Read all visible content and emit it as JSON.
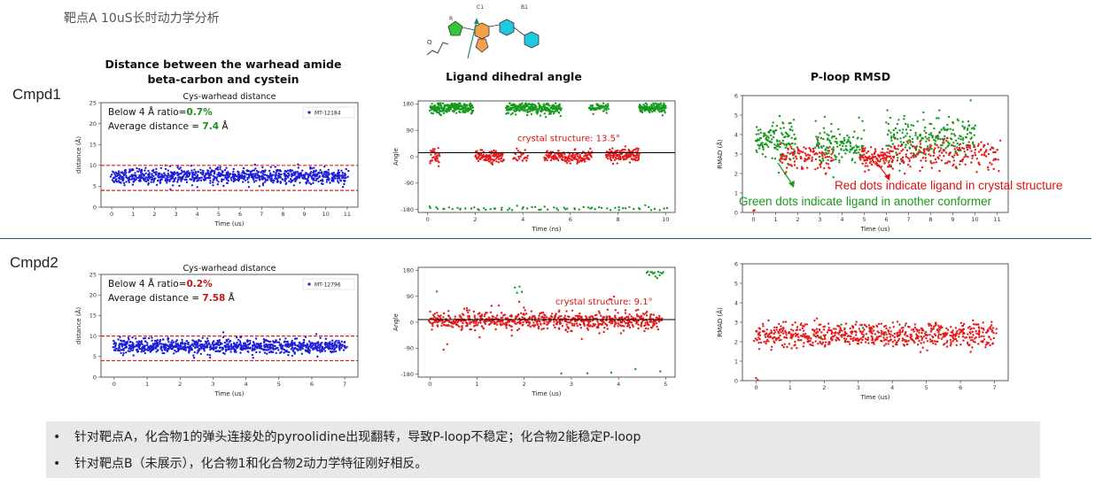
{
  "slide_title": "靶点A 10uS长时动力学分析",
  "rows": {
    "cmpd1": "Cmpd1",
    "cmpd2": "Cmpd2"
  },
  "column_headers": {
    "distance": "Distance between the warhead amide beta-carbon and cystein",
    "dihedral": "Ligand dihedral angle",
    "rmsd": "P-loop RMSD"
  },
  "structure_labels": {
    "r": "R",
    "c1": "C1",
    "b1": "B1"
  },
  "colors": {
    "blue": "#1f1fd6",
    "red": "#e51b1b",
    "green": "#179a1f",
    "accent_green": "#1a8c1a",
    "accent_red": "#c01818"
  },
  "annotations": {
    "rmsd_red": "Red dots indicate ligand in crystal structure",
    "rmsd_green": "Green dots indicate ligand in another conformer"
  },
  "bullets": [
    "针对靶点A，化合物1的弹头连接处的pyroolidine出现翻转，导致P-loop不稳定；化合物2能稳定P-loop",
    "针对靶点B（未展示），化合物1和化合物2动力学特征刚好相反。"
  ],
  "chart_data": [
    {
      "id": "c1_distance",
      "type": "scatter",
      "title": "Cys-warhead distance",
      "xlabel": "Time (us)",
      "ylabel": "distance (Å)",
      "xlim": [
        -0.5,
        11.5
      ],
      "ylim": [
        0,
        25
      ],
      "xticks": [
        0,
        1,
        2,
        3,
        4,
        5,
        6,
        7,
        8,
        9,
        10,
        11
      ],
      "yticks": [
        0,
        5,
        10,
        15,
        20,
        25
      ],
      "legend": "MT-12184",
      "hlines": [
        4,
        10
      ],
      "ratio_label": "Below 4 Å ratio=",
      "ratio_value": "0.7%",
      "avg_label": "Average distance = ",
      "avg_value": "7.4",
      "avg_unit": " Å",
      "sim": {
        "x0": 0,
        "x1": 11,
        "n": 900,
        "mean": 7.4,
        "sd": 0.9,
        "color": "blue"
      }
    },
    {
      "id": "c1_dihedral",
      "type": "scatter",
      "title": "",
      "xlabel": "Time (ns)",
      "ylabel": "Angle",
      "xlim": [
        -0.4,
        10.4
      ],
      "ylim": [
        -190,
        190
      ],
      "xticks": [
        0,
        2,
        4,
        6,
        8,
        10
      ],
      "yticks": [
        180,
        90,
        0,
        -90,
        -180
      ],
      "hlines": [
        13.5
      ],
      "crystal_label": "crystal structure: 13.5°",
      "sim": {
        "segments": [
          {
            "x0": 0.1,
            "x1": 1.9,
            "mean": 165,
            "sd": 9,
            "n": 230,
            "color": "green"
          },
          {
            "x0": 0.1,
            "x1": 0.5,
            "mean": 0,
            "sd": 18,
            "n": 30,
            "color": "red"
          },
          {
            "x0": 2.0,
            "x1": 3.2,
            "mean": 0,
            "sd": 10,
            "n": 120,
            "color": "red"
          },
          {
            "x0": 3.3,
            "x1": 5.6,
            "mean": 165,
            "sd": 9,
            "n": 230,
            "color": "green"
          },
          {
            "x0": 3.6,
            "x1": 4.2,
            "mean": 0,
            "sd": 12,
            "n": 25,
            "color": "red"
          },
          {
            "x0": 4.9,
            "x1": 6.9,
            "mean": 0,
            "sd": 10,
            "n": 150,
            "color": "red"
          },
          {
            "x0": 6.8,
            "x1": 7.6,
            "mean": 165,
            "sd": 8,
            "n": 60,
            "color": "green"
          },
          {
            "x0": 7.5,
            "x1": 8.9,
            "mean": 5,
            "sd": 12,
            "n": 150,
            "color": "red"
          },
          {
            "x0": 8.9,
            "x1": 10.0,
            "mean": 165,
            "sd": 8,
            "n": 140,
            "color": "green"
          },
          {
            "x0": 0.0,
            "x1": 10.0,
            "mean": -178,
            "sd": 4,
            "n": 70,
            "color": "green"
          }
        ]
      }
    },
    {
      "id": "c1_rmsd",
      "type": "scatter",
      "title": "",
      "xlabel": "Time (us)",
      "ylabel": "RMAD (Å)",
      "xlim": [
        -0.5,
        11.5
      ],
      "ylim": [
        0,
        6
      ],
      "xticks": [
        0,
        1,
        2,
        3,
        4,
        5,
        6,
        7,
        8,
        9,
        10,
        11
      ],
      "yticks": [
        0,
        1,
        2,
        3,
        4,
        5,
        6
      ],
      "sim": {
        "segments": [
          {
            "x0": 0.0,
            "x1": 0.05,
            "mean": 0.2,
            "sd": 0.1,
            "n": 2,
            "color": "red"
          },
          {
            "x0": 0.1,
            "x1": 1.9,
            "mean": 3.7,
            "sd": 0.5,
            "n": 130,
            "color": "green"
          },
          {
            "x0": 1.2,
            "x1": 3.6,
            "mean": 2.9,
            "sd": 0.35,
            "n": 120,
            "color": "red"
          },
          {
            "x0": 2.8,
            "x1": 5.0,
            "mean": 3.5,
            "sd": 0.5,
            "n": 130,
            "color": "green"
          },
          {
            "x0": 4.8,
            "x1": 6.3,
            "mean": 2.8,
            "sd": 0.3,
            "n": 120,
            "color": "red"
          },
          {
            "x0": 6.0,
            "x1": 10.0,
            "mean": 3.8,
            "sd": 0.55,
            "n": 220,
            "color": "green"
          },
          {
            "x0": 6.3,
            "x1": 11.1,
            "mean": 3.0,
            "sd": 0.4,
            "n": 200,
            "color": "red"
          }
        ]
      }
    },
    {
      "id": "c2_distance",
      "type": "scatter",
      "title": "Cys-warhead distance",
      "xlabel": "Time (us)",
      "ylabel": "distance (Å)",
      "xlim": [
        -0.4,
        7.4
      ],
      "ylim": [
        0,
        25
      ],
      "xticks": [
        0,
        1,
        2,
        3,
        4,
        5,
        6,
        7
      ],
      "yticks": [
        0,
        5,
        10,
        15,
        20,
        25
      ],
      "legend": "MT-12796",
      "hlines": [
        4,
        10
      ],
      "ratio_label": "Below 4 Å ratio=",
      "ratio_value": "0.2%",
      "avg_label": "Average distance = ",
      "avg_value": "7.58",
      "avg_unit": " Å",
      "sim": {
        "x0": 0,
        "x1": 7,
        "n": 900,
        "mean": 7.5,
        "sd": 0.9,
        "color": "blue"
      }
    },
    {
      "id": "c2_dihedral",
      "type": "scatter",
      "title": "",
      "xlabel": "Time (us)",
      "ylabel": "Angle",
      "xlim": [
        -0.25,
        5.2
      ],
      "ylim": [
        -190,
        190
      ],
      "xticks": [
        0,
        1,
        2,
        3,
        4,
        5
      ],
      "yticks": [
        180,
        90,
        0,
        -90,
        -180
      ],
      "hlines": [
        9.1
      ],
      "crystal_label": "crystal structure:  9.1°",
      "sim": {
        "segments": [
          {
            "x0": 0.0,
            "x1": 4.9,
            "mean": 5,
            "sd": 14,
            "n": 700,
            "color": "red"
          },
          {
            "x0": 0.0,
            "x1": 4.9,
            "mean": 0,
            "sd": 45,
            "n": 40,
            "color": "red"
          },
          {
            "x0": 4.6,
            "x1": 4.95,
            "mean": 170,
            "sd": 10,
            "n": 14,
            "color": "green"
          },
          {
            "x0": 1.8,
            "x1": 1.95,
            "mean": 110,
            "sd": 10,
            "n": 4,
            "color": "green"
          },
          {
            "x0": 2.8,
            "x1": 4.9,
            "mean": -170,
            "sd": 6,
            "n": 5,
            "color": "green"
          },
          {
            "x0": 0.0,
            "x1": 0.3,
            "mean": 100,
            "sd": 5,
            "n": 1,
            "color": "green"
          }
        ]
      }
    },
    {
      "id": "c2_rmsd",
      "type": "scatter",
      "title": "",
      "xlabel": "Time (us)",
      "ylabel": "RMAD (Å)",
      "xlim": [
        -0.4,
        7.4
      ],
      "ylim": [
        0,
        6
      ],
      "xticks": [
        0,
        1,
        2,
        3,
        4,
        5,
        6,
        7
      ],
      "yticks": [
        0,
        1,
        2,
        3,
        4,
        5,
        6
      ],
      "sim": {
        "segments": [
          {
            "x0": 0.0,
            "x1": 0.05,
            "mean": 0.1,
            "sd": 0.05,
            "n": 2,
            "color": "red"
          },
          {
            "x0": 0.0,
            "x1": 7.0,
            "mean": 2.35,
            "sd": 0.3,
            "n": 700,
            "color": "red"
          },
          {
            "x0": 1.9,
            "x1": 5.0,
            "mean": 2.5,
            "sd": 0.4,
            "n": 6,
            "color": "green"
          }
        ]
      }
    }
  ]
}
